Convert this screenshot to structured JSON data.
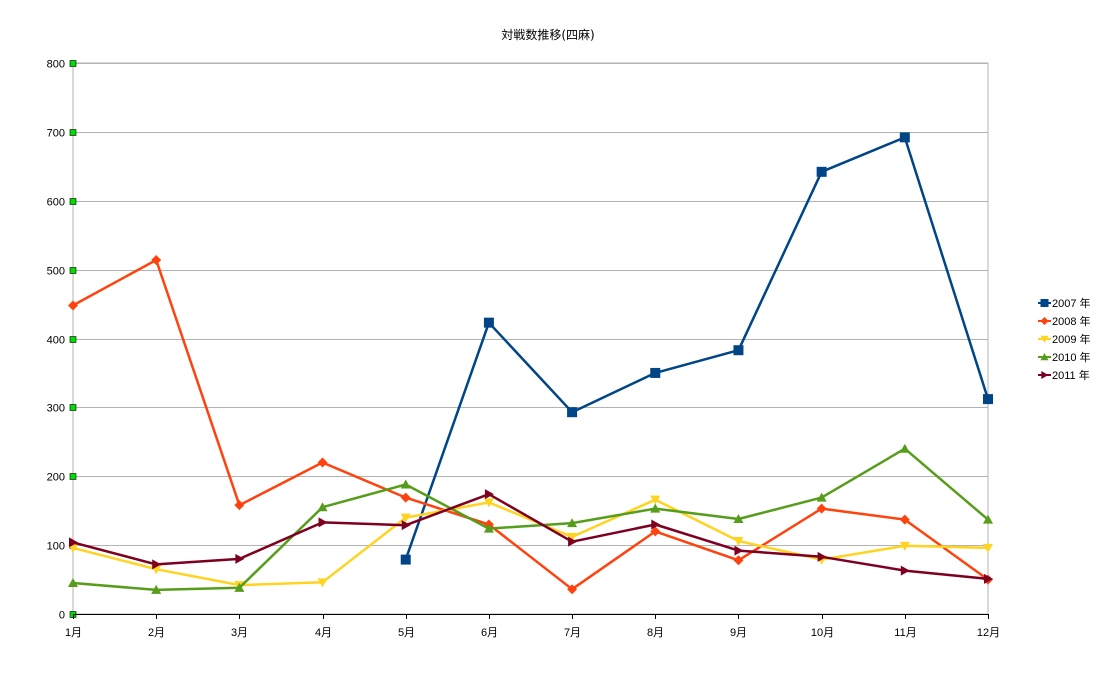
{
  "chart_data": {
    "type": "line",
    "title": "対戦数推移(四麻)",
    "xlabel": "",
    "ylabel": "",
    "categories": [
      "1月",
      "2月",
      "3月",
      "4月",
      "5月",
      "6月",
      "7月",
      "8月",
      "9月",
      "10月",
      "11月",
      "12月"
    ],
    "ylim": [
      0,
      800
    ],
    "yticks": [
      0,
      100,
      200,
      300,
      400,
      500,
      600,
      700,
      800
    ],
    "grid": true,
    "legend_position": "right",
    "series": [
      {
        "name": "2007 年",
        "color": "#004586",
        "marker": "square",
        "values": [
          null,
          null,
          null,
          null,
          79,
          423,
          293,
          350,
          383,
          642,
          692,
          312
        ]
      },
      {
        "name": "2008 年",
        "color": "#ff420e",
        "marker": "diamond",
        "values": [
          448,
          514,
          158,
          220,
          169,
          130,
          36,
          120,
          78,
          153,
          137,
          50
        ]
      },
      {
        "name": "2009 年",
        "color": "#ffd320",
        "marker": "triangle-down",
        "values": [
          96,
          65,
          42,
          46,
          140,
          162,
          112,
          166,
          106,
          79,
          99,
          96
        ]
      },
      {
        "name": "2010 年",
        "color": "#579d1c",
        "marker": "triangle-up",
        "values": [
          45,
          35,
          38,
          155,
          188,
          124,
          132,
          153,
          138,
          169,
          240,
          137
        ]
      },
      {
        "name": "2011 年",
        "color": "#7e0021",
        "marker": "triangle-right",
        "values": [
          104,
          72,
          80,
          133,
          129,
          174,
          105,
          130,
          92,
          83,
          63,
          51
        ]
      }
    ]
  }
}
